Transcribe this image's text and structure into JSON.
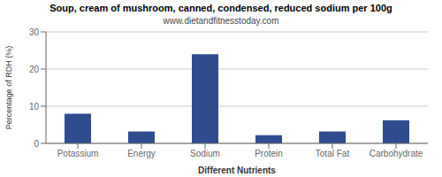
{
  "chart_data": {
    "type": "bar",
    "title": "Soup, cream of mushroom, canned, condensed, reduced sodium per 100g",
    "subtitle": "www.dietandfitnesstoday.com",
    "xlabel": "Different Nutrients",
    "ylabel": "Percentage of RDH (%)",
    "categories": [
      "Potassium",
      "Energy",
      "Sodium",
      "Protein",
      "Total Fat",
      "Carbohydrate"
    ],
    "values": [
      8.0,
      3.2,
      24.0,
      2.2,
      3.2,
      6.2
    ],
    "color": "#2e4d8e",
    "ylim": [
      0,
      30
    ],
    "yticks": [
      0,
      10,
      20,
      30
    ],
    "grid": true
  }
}
